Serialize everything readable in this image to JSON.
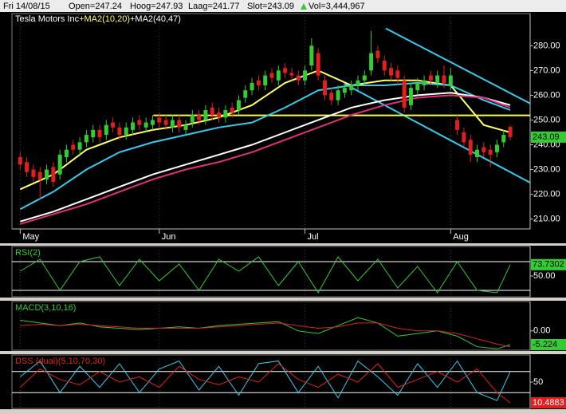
{
  "header": {
    "date": "Fri 14/08/15",
    "open": "Open=247.24",
    "high": "Hoog=247.93",
    "low": "Laag=241.77",
    "close": "Slot=243.09",
    "volume": "Vol=3,444,967"
  },
  "chart_data": [
    {
      "type": "candlestick",
      "title": "Tesla Motors Inc",
      "legend": [
        {
          "text": "+MA2(10,20)",
          "color": "#ffff66"
        },
        {
          "text": "+MA2(40,47)",
          "color": "#ffffff"
        }
      ],
      "up_color": "#33cc33",
      "down_color": "#e02020",
      "x": [
        0,
        1,
        2,
        3,
        4,
        5,
        6,
        7,
        8,
        9,
        10,
        11,
        12,
        13,
        14,
        15,
        16,
        17,
        18,
        19,
        20,
        21,
        22,
        23,
        24,
        25,
        26,
        27,
        28,
        29,
        30,
        31,
        32,
        33,
        34,
        35,
        36,
        37,
        38,
        39,
        40,
        41,
        42,
        43,
        44,
        45,
        46,
        47,
        48,
        49,
        50,
        51,
        52,
        53,
        54,
        55,
        56,
        57,
        58,
        59,
        60,
        61,
        62,
        63,
        64,
        65,
        66,
        67,
        68,
        69,
        70,
        71,
        72,
        73,
        74
      ],
      "open": [
        235,
        233,
        230,
        229,
        226,
        231,
        228,
        235,
        240,
        238,
        241,
        243,
        246,
        244,
        249,
        247,
        244,
        246,
        250,
        247,
        248,
        251,
        250,
        247,
        250,
        246,
        249,
        252,
        250,
        255,
        253,
        251,
        255,
        254,
        259,
        262,
        266,
        264,
        269,
        266,
        271,
        269,
        268,
        266,
        272,
        277,
        266,
        261,
        258,
        261,
        262,
        264,
        266,
        270,
        278,
        274,
        271,
        270,
        266,
        256,
        262,
        264,
        268,
        265,
        268,
        264,
        250,
        245,
        242,
        235,
        239,
        238,
        237,
        241,
        247.24
      ],
      "high": [
        237,
        235,
        232,
        231,
        232,
        233,
        238,
        240,
        242,
        243,
        246,
        248,
        248,
        250,
        251,
        249,
        249,
        251,
        252,
        251,
        252,
        253,
        252,
        252,
        252,
        250,
        254,
        254,
        256,
        257,
        255,
        256,
        257,
        260,
        264,
        267,
        268,
        270,
        271,
        272,
        273,
        271,
        270,
        272,
        283,
        279,
        268,
        263,
        264,
        265,
        266,
        268,
        270,
        286,
        280,
        276,
        273,
        272,
        268,
        265,
        267,
        268,
        270,
        270,
        272,
        271,
        252,
        247,
        244,
        240,
        241,
        240,
        242,
        246,
        247.93
      ],
      "low": [
        230,
        227,
        225,
        218,
        224,
        223,
        226,
        233,
        236,
        236,
        239,
        241,
        241,
        242,
        245,
        242,
        242,
        244,
        246,
        245,
        246,
        247,
        246,
        245,
        245,
        244,
        247,
        248,
        248,
        250,
        249,
        249,
        251,
        252,
        257,
        260,
        262,
        262,
        265,
        264,
        267,
        266,
        264,
        264,
        270,
        266,
        258,
        256,
        256,
        259,
        260,
        262,
        264,
        268,
        273,
        268,
        266,
        265,
        253,
        254,
        260,
        262,
        264,
        263,
        263,
        262,
        244,
        239,
        233,
        233,
        235,
        231,
        235,
        239,
        241.77
      ],
      "close": [
        232,
        229,
        227,
        226,
        230,
        225,
        236,
        238,
        238,
        241,
        244,
        246,
        243,
        248,
        247,
        244,
        247,
        249,
        248,
        249,
        250,
        249,
        248,
        250,
        247,
        248,
        252,
        250,
        254,
        252,
        251,
        254,
        253,
        258,
        262,
        265,
        264,
        268,
        267,
        270,
        269,
        268,
        266,
        270,
        280,
        268,
        260,
        258,
        262,
        263,
        264,
        266,
        268,
        277,
        275,
        270,
        268,
        267,
        255,
        263,
        265,
        266,
        266,
        268,
        265,
        268,
        246,
        241,
        236,
        238,
        237,
        236,
        240,
        244,
        243.09
      ],
      "series": [
        {
          "color": "#ffff66",
          "x": [
            0,
            5,
            10,
            15,
            20,
            25,
            30,
            35,
            40,
            45,
            50,
            55,
            60,
            65,
            70,
            74
          ],
          "values": [
            222,
            228,
            238,
            243,
            246,
            248,
            251,
            256,
            265,
            270,
            264,
            266,
            266,
            264,
            248,
            245
          ]
        },
        {
          "color": "#33ccee",
          "x": [
            0,
            5,
            10,
            15,
            20,
            25,
            30,
            35,
            40,
            45,
            50,
            55,
            60,
            65,
            70,
            74
          ],
          "values": [
            214,
            221,
            230,
            237,
            241,
            244,
            247,
            249,
            255,
            262,
            264,
            264,
            265,
            264,
            258,
            254
          ]
        },
        {
          "color": "#ffffff",
          "x": [
            0,
            5,
            10,
            15,
            20,
            25,
            30,
            35,
            40,
            45,
            50,
            55,
            60,
            65,
            70,
            74
          ],
          "values": [
            209,
            213,
            218,
            223,
            228,
            232,
            236,
            240,
            245,
            250,
            255,
            258,
            260,
            261,
            259,
            256
          ]
        },
        {
          "color": "#e0307a",
          "x": [
            0,
            5,
            10,
            15,
            20,
            25,
            30,
            35,
            40,
            45,
            50,
            55,
            60,
            65,
            70,
            74
          ],
          "values": [
            208,
            212,
            216,
            221,
            226,
            230,
            233,
            237,
            242,
            247,
            252,
            256,
            259,
            260,
            259,
            255
          ]
        }
      ],
      "trendlines": [
        {
          "color": "#33ccee",
          "x": [
            55.2,
            77
          ],
          "values": [
            287,
            256.7
          ]
        },
        {
          "color": "#33ccee",
          "x": [
            48.9,
            77
          ],
          "values": [
            264.7,
            224.7
          ]
        },
        {
          "color": "#ffff33",
          "x": [
            20.1,
            77
          ],
          "values": [
            251.9,
            251.9
          ]
        }
      ],
      "xlim": [
        -0.4,
        77
      ],
      "ylim": [
        206,
        293
      ],
      "xticks": [
        {
          "value": 0,
          "label": "May"
        },
        {
          "value": 21,
          "label": "Jun"
        },
        {
          "value": 43,
          "label": "Jul"
        },
        {
          "value": 65,
          "label": "Aug"
        }
      ],
      "yticks": [
        {
          "value": 210,
          "label": "210.00"
        },
        {
          "value": 220,
          "label": "220.00"
        },
        {
          "value": 230,
          "label": "230.00"
        },
        {
          "value": 240,
          "label": "240.00"
        },
        {
          "value": 250,
          "label": "250.00"
        },
        {
          "value": 260,
          "label": "260.00"
        },
        {
          "value": 270,
          "label": "270.00"
        },
        {
          "value": 280,
          "label": "280.00"
        }
      ]
    },
    {
      "type": "line",
      "title": "RSI(2)",
      "xlim": [
        -0.4,
        77
      ],
      "ylim": [
        0,
        100
      ],
      "levels": [
        80,
        20
      ],
      "yticks": [
        {
          "value": 50,
          "label": "50.00"
        }
      ],
      "label_color": "#33cc33",
      "series": [
        {
          "color": "#33cc33",
          "x": [
            0,
            3,
            6,
            9,
            12,
            15,
            18,
            21,
            24,
            27,
            30,
            33,
            36,
            39,
            42,
            45,
            48,
            51,
            54,
            57,
            60,
            63,
            66,
            69,
            72,
            74
          ],
          "values": [
            60,
            85,
            20,
            80,
            90,
            30,
            85,
            40,
            75,
            20,
            85,
            60,
            90,
            30,
            80,
            15,
            90,
            40,
            85,
            25,
            70,
            15,
            80,
            20,
            15,
            73.7302
          ]
        }
      ]
    },
    {
      "type": "line",
      "title": "MACD(3,10,16)",
      "xlim": [
        -0.4,
        77
      ],
      "ylim": [
        -7,
        10.5
      ],
      "yticks": [
        {
          "value": 0,
          "label": "0.00"
        }
      ],
      "label_color": "#33cc33",
      "series": [
        {
          "color": "#33cc33",
          "x": [
            0,
            3,
            6,
            9,
            12,
            15,
            18,
            21,
            24,
            27,
            30,
            33,
            36,
            39,
            42,
            45,
            48,
            51,
            54,
            57,
            60,
            63,
            66,
            69,
            72,
            74
          ],
          "values": [
            4,
            3,
            2,
            3,
            1.5,
            1,
            0.5,
            1,
            1.5,
            1,
            2,
            2.5,
            3,
            3.5,
            0,
            -1,
            2,
            5,
            3,
            -2,
            -1,
            0,
            -2,
            -6,
            -6.8,
            -5.224
          ]
        },
        {
          "color": "#e02020",
          "x": [
            0,
            3,
            6,
            9,
            12,
            15,
            18,
            21,
            24,
            27,
            30,
            33,
            36,
            39,
            42,
            45,
            48,
            51,
            54,
            57,
            60,
            63,
            66,
            69,
            72,
            74
          ],
          "values": [
            2,
            2.5,
            2,
            2.5,
            2,
            1.5,
            1,
            1,
            1,
            1,
            1.5,
            2,
            2.5,
            3,
            2,
            1,
            1.5,
            3,
            3,
            1,
            0,
            0,
            -1,
            -3,
            -5,
            -6
          ]
        }
      ]
    },
    {
      "type": "line",
      "title": "DSS (dual)(5,10,70,30)",
      "xlim": [
        -0.4,
        77
      ],
      "ylim": [
        0,
        100
      ],
      "levels": [
        70,
        30
      ],
      "yticks": [
        50
      ],
      "label_color": "#e02020",
      "series": [
        {
          "color": "#33ccee",
          "x": [
            0,
            3,
            6,
            9,
            12,
            15,
            18,
            21,
            24,
            27,
            30,
            33,
            36,
            39,
            42,
            45,
            48,
            51,
            54,
            57,
            60,
            63,
            66,
            69,
            72,
            74
          ],
          "values": [
            60,
            90,
            30,
            80,
            40,
            85,
            30,
            75,
            90,
            35,
            80,
            25,
            85,
            90,
            30,
            80,
            20,
            90,
            60,
            25,
            85,
            40,
            90,
            30,
            15,
            70
          ]
        },
        {
          "color": "#e02020",
          "x": [
            0,
            3,
            6,
            9,
            12,
            15,
            18,
            21,
            24,
            27,
            30,
            33,
            36,
            39,
            42,
            45,
            48,
            51,
            54,
            57,
            60,
            63,
            66,
            69,
            72,
            74
          ],
          "values": [
            40,
            75,
            55,
            45,
            70,
            50,
            60,
            40,
            80,
            55,
            45,
            60,
            50,
            85,
            55,
            40,
            65,
            50,
            85,
            40,
            55,
            70,
            50,
            75,
            30,
            10.4883
          ]
        }
      ]
    }
  ]
}
